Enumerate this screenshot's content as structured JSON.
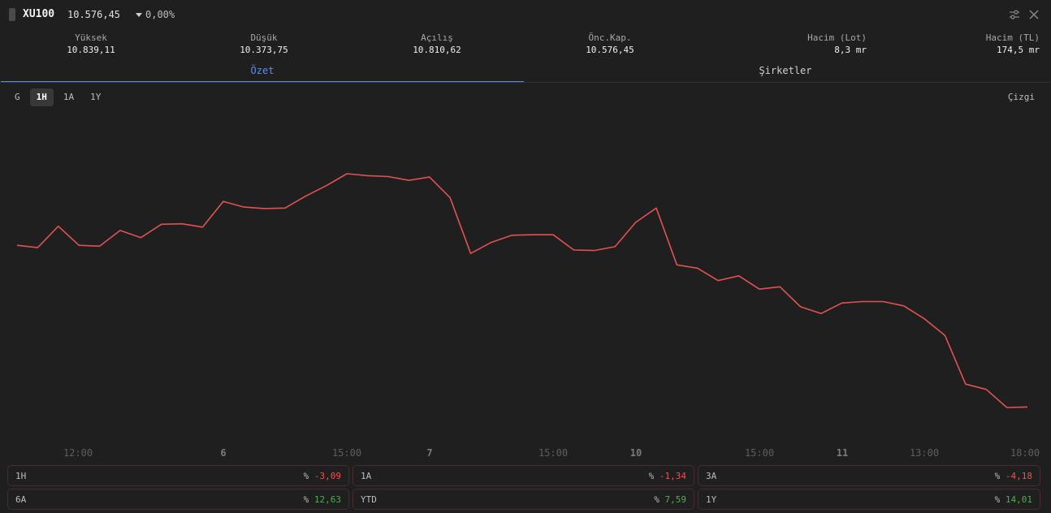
{
  "header": {
    "symbol": "XU100",
    "last_price": "10.576,45",
    "change_pct": "0,00%"
  },
  "stats": [
    {
      "label": "Yüksek",
      "value": "10.839,11"
    },
    {
      "label": "Düşük",
      "value": "10.373,75"
    },
    {
      "label": "Açılış",
      "value": "10.810,62"
    },
    {
      "label": "Önc.Kap.",
      "value": "10.576,45"
    },
    {
      "label": "Hacim (Lot)",
      "value": "8,3 mr"
    },
    {
      "label": "Hacim (TL)",
      "value": "174,5 mr"
    }
  ],
  "tabs": [
    {
      "label": "Özet",
      "active": true
    },
    {
      "label": "Şirketler",
      "active": false
    }
  ],
  "periods": [
    {
      "label": "G",
      "active": false
    },
    {
      "label": "1H",
      "active": true
    },
    {
      "label": "1A",
      "active": false
    },
    {
      "label": "1Y",
      "active": false
    }
  ],
  "chart_type_label": "Çizgi",
  "chart_data": {
    "type": "line",
    "color": "#e05252",
    "x_tick_labels": [
      {
        "label": "12:00",
        "bold": false
      },
      {
        "label": "6",
        "bold": true
      },
      {
        "label": "15:00",
        "bold": false
      },
      {
        "label": "7",
        "bold": true
      },
      {
        "label": "15:00",
        "bold": false
      },
      {
        "label": "10",
        "bold": true
      },
      {
        "label": "15:00",
        "bold": false
      },
      {
        "label": "11",
        "bold": true
      },
      {
        "label": "13:00",
        "bold": false
      },
      {
        "label": "18:00",
        "bold": false
      }
    ],
    "series": [
      {
        "values": [
          10700,
          10695,
          10740,
          10700,
          10698,
          10731,
          10716,
          10744,
          10745,
          10738,
          10792,
          10780,
          10777,
          10778,
          10803,
          10825,
          10850,
          10846,
          10844,
          10836,
          10843,
          10800,
          10683,
          10706,
          10721,
          10722,
          10722,
          10690,
          10689,
          10697,
          10748,
          10778,
          10659,
          10652,
          10626,
          10636,
          10608,
          10613,
          10571,
          10557,
          10579,
          10582,
          10582,
          10573,
          10546,
          10511,
          10409,
          10398,
          10360,
          10361
        ]
      }
    ]
  },
  "performance": [
    [
      {
        "label": "1H",
        "sign": "%",
        "value": "-3,09",
        "dir": "neg"
      },
      {
        "label": "1A",
        "sign": "%",
        "value": "-1,34",
        "dir": "neg"
      },
      {
        "label": "3A",
        "sign": "%",
        "value": "-4,18",
        "dir": "neg"
      }
    ],
    [
      {
        "label": "6A",
        "sign": "%",
        "value": "12,63",
        "dir": "pos"
      },
      {
        "label": "YTD",
        "sign": "%",
        "value": "7,59",
        "dir": "pos"
      },
      {
        "label": "1Y",
        "sign": "%",
        "value": "14,01",
        "dir": "pos"
      }
    ]
  ]
}
